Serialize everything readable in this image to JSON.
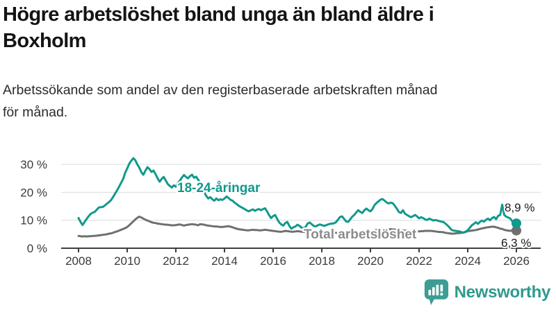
{
  "header": {
    "title": "Högre arbetslöshet bland unga än bland äldre i\nBoxholm",
    "subtitle": "Arbetssökande som andel av den registerbaserade arbetskraften månad\nför månad."
  },
  "footer": {
    "brand": "Newsworthy"
  },
  "colors": {
    "youth_line": "#10998C",
    "total_line": "#6F6F6F",
    "youth_label": "#10998C",
    "total_label": "#8C8C8C",
    "grid": "#DCDCDC",
    "axis": "#3D3D3D",
    "logo": "#3C9D94"
  },
  "chart_data": {
    "type": "line",
    "x_start_year": 2008,
    "points_per_year": 12,
    "x_end_year": 2026,
    "ylim": [
      0,
      34
    ],
    "yticks": [
      0,
      10,
      20,
      30
    ],
    "ytick_labels": [
      "0 %",
      "10 %",
      "20 %",
      "30 %"
    ],
    "xticks": [
      2008,
      2010,
      2012,
      2014,
      2016,
      2018,
      2020,
      2022,
      2024,
      2026
    ],
    "grid": "horizontal",
    "legend_position": "inline-labels",
    "series": [
      {
        "name": "18-24-åringar",
        "color": "#10998C",
        "end_label": "8,9 %",
        "end_value": 8.9,
        "values": [
          10.8,
          9.4,
          8.3,
          9.4,
          10.5,
          11.5,
          12.3,
          12.7,
          13.0,
          13.8,
          14.6,
          14.7,
          14.8,
          15.3,
          15.9,
          16.5,
          17.2,
          18.3,
          19.5,
          20.7,
          22.0,
          23.4,
          24.8,
          27.0,
          28.5,
          30.2,
          31.3,
          32.2,
          31.5,
          30.0,
          28.8,
          27.2,
          26.3,
          27.8,
          29.0,
          28.3,
          27.3,
          27.8,
          26.5,
          25.0,
          23.8,
          24.8,
          25.5,
          24.3,
          23.0,
          22.3,
          21.7,
          22.5,
          22.0,
          23.3,
          24.2,
          25.3,
          26.2,
          25.5,
          25.0,
          25.8,
          26.3,
          25.2,
          25.6,
          24.5,
          23.5,
          22.0,
          20.0,
          18.7,
          17.8,
          18.3,
          17.5,
          17.0,
          17.8,
          17.2,
          17.5,
          17.3,
          17.8,
          18.5,
          18.0,
          17.3,
          17.0,
          16.3,
          15.8,
          15.2,
          14.8,
          14.4,
          14.0,
          13.5,
          13.2,
          13.6,
          13.9,
          13.4,
          13.8,
          14.0,
          13.6,
          14.0,
          14.3,
          13.2,
          11.8,
          10.8,
          11.5,
          11.9,
          10.5,
          9.2,
          8.5,
          8.1,
          9.0,
          9.4,
          8.0,
          7.0,
          7.5,
          7.8,
          8.4,
          8.0,
          7.4,
          7.2,
          7.6,
          8.8,
          9.2,
          8.6,
          8.0,
          7.8,
          8.2,
          8.5,
          8.3,
          8.0,
          8.2,
          8.5,
          8.7,
          8.8,
          8.9,
          9.3,
          10.2,
          11.2,
          11.4,
          10.5,
          9.6,
          9.4,
          10.3,
          11.3,
          11.9,
          12.8,
          13.6,
          13.0,
          12.6,
          13.6,
          14.2,
          13.6,
          13.2,
          14.0,
          15.4,
          16.2,
          16.8,
          17.4,
          17.6,
          17.0,
          16.4,
          16.0,
          16.3,
          16.1,
          15.2,
          14.2,
          13.0,
          12.6,
          13.6,
          12.4,
          11.9,
          11.5,
          11.1,
          11.5,
          11.9,
          11.4,
          10.7,
          11.1,
          10.8,
          10.3,
          10.1,
          10.6,
          10.3,
          9.9,
          10.1,
          9.9,
          9.7,
          9.5,
          9.4,
          8.8,
          8.2,
          7.4,
          6.6,
          6.3,
          6.2,
          6.1,
          6.0,
          5.7,
          5.6,
          6.0,
          6.4,
          7.3,
          8.2,
          8.7,
          9.3,
          8.7,
          9.4,
          9.9,
          9.5,
          10.2,
          10.6,
          10.0,
          10.8,
          11.2,
          10.4,
          11.6,
          11.9,
          15.6,
          11.9,
          11.3,
          11.0,
          10.6,
          9.6,
          9.2,
          8.9
        ]
      },
      {
        "name": "Total arbetslöshet",
        "color": "#6F6F6F",
        "end_label": "6,3 %",
        "end_value": 6.3,
        "values": [
          4.4,
          4.3,
          4.2,
          4.3,
          4.2,
          4.3,
          4.3,
          4.4,
          4.4,
          4.5,
          4.6,
          4.7,
          4.8,
          4.9,
          5.0,
          5.2,
          5.3,
          5.5,
          5.8,
          6.0,
          6.3,
          6.6,
          6.9,
          7.2,
          7.6,
          8.2,
          8.9,
          9.6,
          10.3,
          10.9,
          11.3,
          11.0,
          10.6,
          10.2,
          9.9,
          9.6,
          9.3,
          9.1,
          9.0,
          8.8,
          8.7,
          8.6,
          8.5,
          8.4,
          8.4,
          8.3,
          8.2,
          8.2,
          8.3,
          8.4,
          8.5,
          8.3,
          8.1,
          8.3,
          8.4,
          8.5,
          8.6,
          8.5,
          8.4,
          8.2,
          8.6,
          8.5,
          8.4,
          8.2,
          8.1,
          8.0,
          7.9,
          7.8,
          7.8,
          7.7,
          7.6,
          7.6,
          7.7,
          7.8,
          7.9,
          7.7,
          7.5,
          7.2,
          7.0,
          6.8,
          6.7,
          6.6,
          6.5,
          6.4,
          6.4,
          6.5,
          6.6,
          6.5,
          6.5,
          6.4,
          6.4,
          6.5,
          6.6,
          6.5,
          6.4,
          6.3,
          6.2,
          6.1,
          6.0,
          5.9,
          5.9,
          6.0,
          6.2,
          6.1,
          6.0,
          5.9,
          5.9,
          6.0,
          6.1,
          6.0,
          5.9,
          5.8,
          5.8,
          5.9,
          6.0,
          5.9,
          5.8,
          5.7,
          5.6,
          5.5,
          5.5,
          5.4,
          5.4,
          5.5,
          5.5,
          5.6,
          5.6,
          5.5,
          5.4,
          5.3,
          5.3,
          5.4,
          5.4,
          5.5,
          5.5,
          5.6,
          5.6,
          5.7,
          5.7,
          5.6,
          5.6,
          5.7,
          5.7,
          5.8,
          5.8,
          6.0,
          6.3,
          6.6,
          6.8,
          6.9,
          7.0,
          6.9,
          6.9,
          6.8,
          6.8,
          6.7,
          6.7,
          6.6,
          6.5,
          6.4,
          6.4,
          6.3,
          6.3,
          6.2,
          6.2,
          6.1,
          6.1,
          6.0,
          6.0,
          6.1,
          6.1,
          6.2,
          6.2,
          6.2,
          6.2,
          6.1,
          6.0,
          5.9,
          5.8,
          5.8,
          5.7,
          5.5,
          5.4,
          5.3,
          5.2,
          5.2,
          5.3,
          5.4,
          5.4,
          5.5,
          5.6,
          5.8,
          6.1,
          6.2,
          6.3,
          6.4,
          6.5,
          6.7,
          6.9,
          7.1,
          7.2,
          7.4,
          7.5,
          7.6,
          7.7,
          7.7,
          7.5,
          7.3,
          7.0,
          6.9,
          6.6,
          6.4,
          6.3,
          6.2,
          6.4,
          6.3,
          6.3
        ]
      }
    ]
  }
}
